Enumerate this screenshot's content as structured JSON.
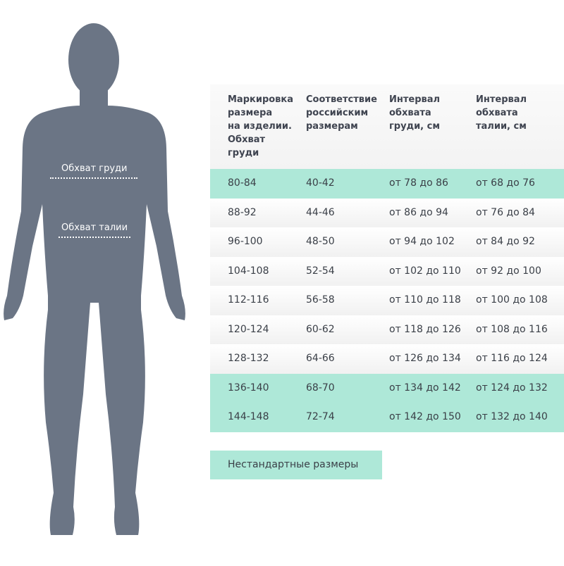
{
  "figure": {
    "chest_label": "Обхват груди",
    "waist_label": "Обхват талии",
    "silhouette_color": "#6b7585"
  },
  "table": {
    "headers": [
      "Маркировка\nразмера\nна изделии.\nОбхват\nгруди",
      "Соответствие\nроссийским\nразмерам",
      "Интервал\nобхвата\nгруди, см",
      "Интервал\nобхвата\nталии, см"
    ],
    "rows": [
      {
        "cells": [
          "80-84",
          "40-42",
          "от 78 до 86",
          "от 68 до 76"
        ],
        "nonstandard": true
      },
      {
        "cells": [
          "88-92",
          "44-46",
          "от 86 до 94",
          "от 76 до 84"
        ],
        "nonstandard": false
      },
      {
        "cells": [
          "96-100",
          "48-50",
          "от 94 до 102",
          "от 84 до 92"
        ],
        "nonstandard": false
      },
      {
        "cells": [
          "104-108",
          "52-54",
          "от 102 до 110",
          "от 92 до 100"
        ],
        "nonstandard": false
      },
      {
        "cells": [
          "112-116",
          "56-58",
          "от 110 до 118",
          "от 100 до 108"
        ],
        "nonstandard": false
      },
      {
        "cells": [
          "120-124",
          "60-62",
          "от 118 до 126",
          "от 108 до 116"
        ],
        "nonstandard": false
      },
      {
        "cells": [
          "128-132",
          "64-66",
          "от 126 до 134",
          "от 116 до 124"
        ],
        "nonstandard": false
      },
      {
        "cells": [
          "136-140",
          "68-70",
          "от 134 до 142",
          "от 124 до 132"
        ],
        "nonstandard": true
      },
      {
        "cells": [
          "144-148",
          "72-74",
          "от 142 до 150",
          "от 132 до 140"
        ],
        "nonstandard": true
      }
    ],
    "highlight_color": "#aee8d8"
  },
  "legend": {
    "label": "Нестандартные размеры"
  }
}
